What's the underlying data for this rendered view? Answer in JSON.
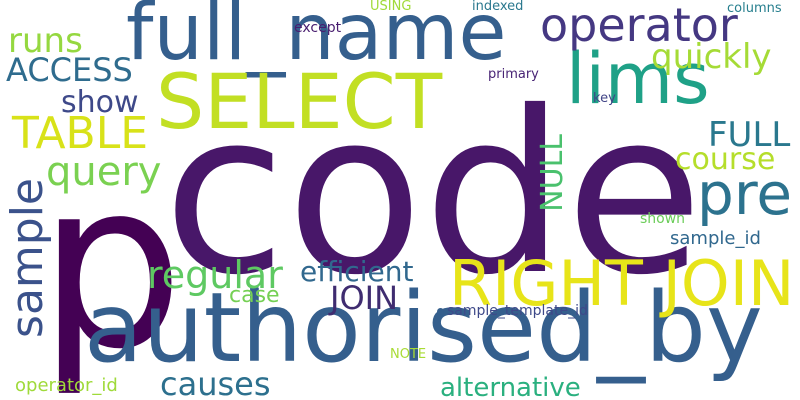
{
  "words": [
    {
      "text": "code",
      "color": "#481769"
    },
    {
      "text": "p",
      "color": "#440154"
    },
    {
      "text": "authorised_by",
      "color": "#355f8d"
    },
    {
      "text": "full_name",
      "color": "#355f8d"
    },
    {
      "text": "SELECT",
      "color": "#c2df23"
    },
    {
      "text": "RIGHT JOIN",
      "color": "#e7e419"
    },
    {
      "text": "lims",
      "color": "#1fa187"
    },
    {
      "text": "operator",
      "color": "#453882"
    },
    {
      "text": "pre",
      "color": "#2c728e"
    },
    {
      "text": "sample",
      "color": "#3b528b"
    },
    {
      "text": "TABLE",
      "color": "#d8e219"
    },
    {
      "text": "query",
      "color": "#7ad151"
    },
    {
      "text": "runs",
      "color": "#95d840"
    },
    {
      "text": "ACCESS",
      "color": "#2f6c8e"
    },
    {
      "text": "show",
      "color": "#3e4989"
    },
    {
      "text": "quickly",
      "color": "#a5db36"
    },
    {
      "text": "FULL",
      "color": "#2a788e"
    },
    {
      "text": "course",
      "color": "#b5de2b"
    },
    {
      "text": "NULL",
      "color": "#4ac16d"
    },
    {
      "text": "regular",
      "color": "#5ec962"
    },
    {
      "text": "efficient",
      "color": "#31688e"
    },
    {
      "text": "JOIN",
      "color": "#3f2c70"
    },
    {
      "text": "case",
      "color": "#75d054"
    },
    {
      "text": "causes",
      "color": "#2d708e"
    },
    {
      "text": "alternative",
      "color": "#2ab07f"
    },
    {
      "text": "operator_id",
      "color": "#9fda3a"
    },
    {
      "text": "sample_id",
      "color": "#31688e"
    },
    {
      "text": "sample_template_id",
      "color": "#3e4989"
    },
    {
      "text": "shown",
      "color": "#6ccd5a"
    },
    {
      "text": "NOTE",
      "color": "#a8db34"
    },
    {
      "text": "except",
      "color": "#481d6f"
    },
    {
      "text": "USING",
      "color": "#a0da39"
    },
    {
      "text": "indexed",
      "color": "#2a788e"
    },
    {
      "text": "columns",
      "color": "#277f8e"
    },
    {
      "text": "primary",
      "color": "#482475"
    },
    {
      "text": "key",
      "color": "#414487"
    }
  ]
}
